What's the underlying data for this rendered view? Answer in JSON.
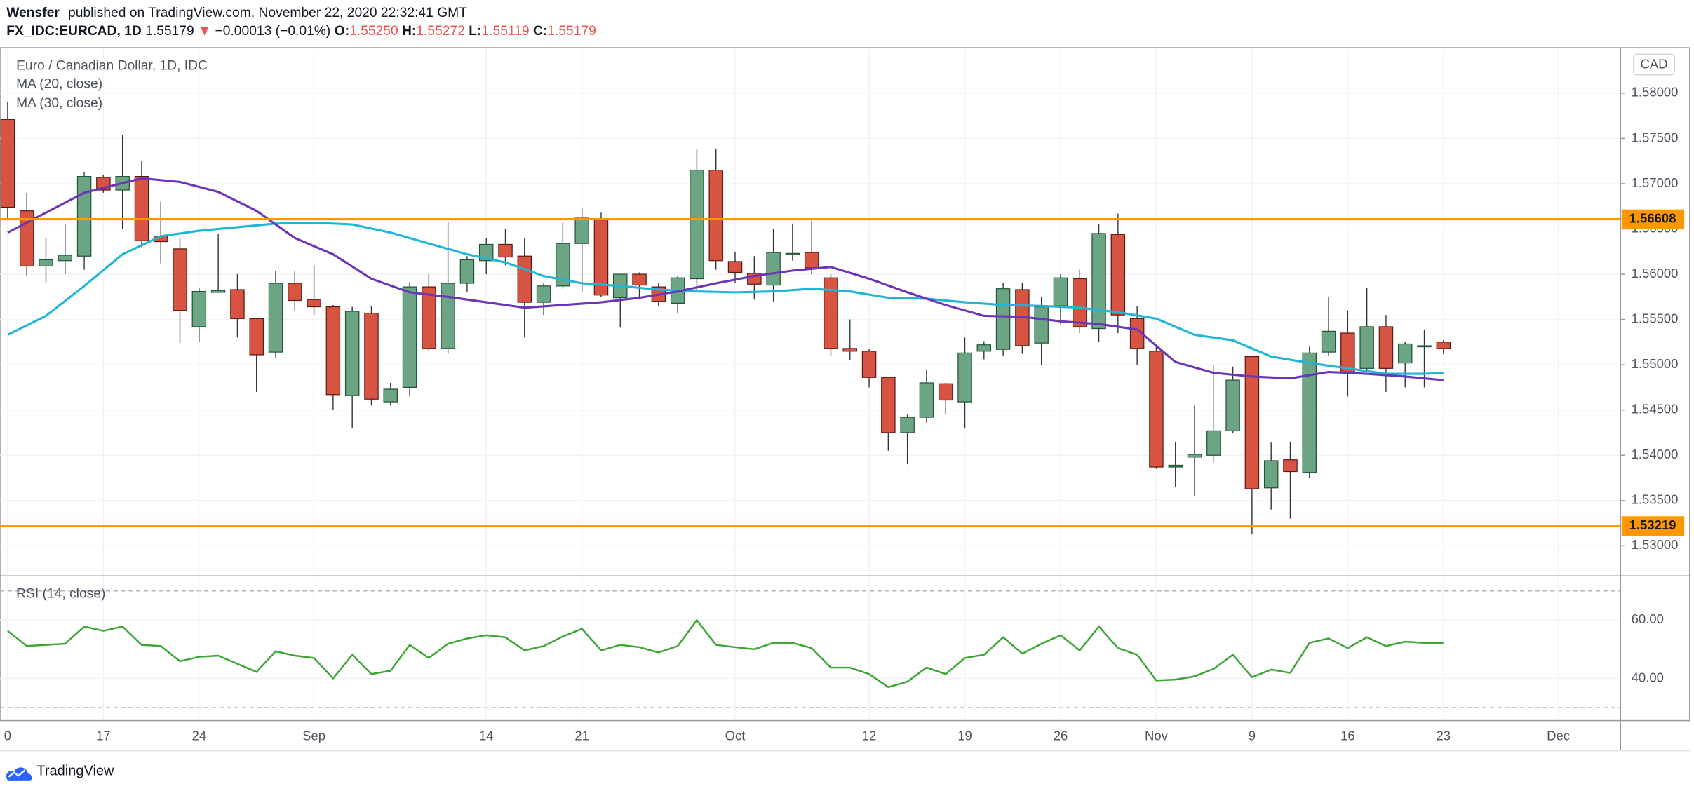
{
  "header": {
    "author": "Wensfer",
    "published": "published on TradingView.com, November 22, 2020 22:32:41 GMT",
    "symbol": "FX_IDC:EURCAD, 1D",
    "last": "1.55179",
    "arrow": "▼",
    "change": "−0.00013 (−0.01%)",
    "open_label": "O:",
    "open": "1.55250",
    "high_label": "H:",
    "high": "1.55272",
    "low_label": "L:",
    "low": "1.55119",
    "close_label": "C:",
    "close": "1.55179"
  },
  "footer": {
    "brand": "TradingView"
  },
  "chart_data": [
    {
      "type": "candlestick",
      "title": "Euro / Canadian Dollar, 1D, IDC",
      "axis_label": "CAD",
      "up_color": "#6ba583",
      "down_color": "#d75442",
      "x": [
        0,
        1,
        2,
        3,
        4,
        5,
        6,
        7,
        8,
        9,
        10,
        11,
        12,
        13,
        14,
        15,
        16,
        17,
        18,
        19,
        20,
        21,
        22,
        23,
        24,
        25,
        26,
        27,
        28,
        29,
        30,
        31,
        32,
        33,
        34,
        35,
        36,
        37,
        38,
        39,
        40,
        41,
        42,
        43,
        44,
        45,
        46,
        47,
        48,
        49,
        50,
        51,
        52,
        53,
        54,
        55,
        56,
        57,
        58,
        59,
        60,
        61,
        62,
        63,
        64,
        65,
        66,
        67,
        68,
        69,
        70,
        71,
        72,
        73,
        74,
        75
      ],
      "open": [
        1.5771,
        1.567,
        1.5609,
        1.5615,
        1.562,
        1.5707,
        1.5693,
        1.5708,
        1.5642,
        1.5628,
        1.5542,
        1.558,
        1.5583,
        1.5551,
        1.5514,
        1.559,
        1.5572,
        1.5564,
        1.5466,
        1.5557,
        1.5459,
        1.5475,
        1.5586,
        1.5518,
        1.559,
        1.5615,
        1.5633,
        1.562,
        1.5569,
        1.5587,
        1.5634,
        1.566,
        1.5574,
        1.56,
        1.5586,
        1.5568,
        1.5595,
        1.5715,
        1.5614,
        1.5601,
        1.5588,
        1.5622,
        1.5624,
        1.5596,
        1.5518,
        1.5515,
        1.5486,
        1.5425,
        1.5442,
        1.5479,
        1.5459,
        1.5515,
        1.5517,
        1.5583,
        1.5524,
        1.5565,
        1.5595,
        1.554,
        1.5644,
        1.5551,
        1.5515,
        1.5387,
        1.5398,
        1.54,
        1.5427,
        1.5509,
        1.5364,
        1.5395,
        1.5381,
        1.5514,
        1.5535,
        1.5496,
        1.5542,
        1.5502,
        1.552,
        1.5525
      ],
      "high": [
        1.579,
        1.569,
        1.564,
        1.5655,
        1.5713,
        1.571,
        1.5754,
        1.5725,
        1.568,
        1.564,
        1.5585,
        1.5645,
        1.56,
        1.5552,
        1.5604,
        1.5604,
        1.561,
        1.5566,
        1.5564,
        1.5565,
        1.548,
        1.559,
        1.56,
        1.5658,
        1.562,
        1.564,
        1.565,
        1.564,
        1.559,
        1.5657,
        1.5673,
        1.5668,
        1.56,
        1.5602,
        1.559,
        1.5598,
        1.5738,
        1.5738,
        1.5625,
        1.562,
        1.565,
        1.5656,
        1.5659,
        1.56,
        1.555,
        1.5518,
        1.5487,
        1.5445,
        1.5495,
        1.548,
        1.553,
        1.5526,
        1.559,
        1.559,
        1.5575,
        1.56,
        1.5605,
        1.5655,
        1.5667,
        1.5565,
        1.552,
        1.5415,
        1.5455,
        1.55,
        1.5498,
        1.551,
        1.5414,
        1.5415,
        1.552,
        1.5575,
        1.556,
        1.5585,
        1.5555,
        1.5525,
        1.5539,
        1.55272
      ],
      "low": [
        1.566,
        1.5598,
        1.559,
        1.56,
        1.5605,
        1.569,
        1.565,
        1.563,
        1.5612,
        1.5524,
        1.5525,
        1.558,
        1.553,
        1.547,
        1.5508,
        1.556,
        1.5555,
        1.545,
        1.543,
        1.5455,
        1.5455,
        1.5465,
        1.5515,
        1.5512,
        1.558,
        1.56,
        1.561,
        1.553,
        1.5555,
        1.5584,
        1.558,
        1.5575,
        1.5541,
        1.5572,
        1.5565,
        1.5557,
        1.5583,
        1.5605,
        1.559,
        1.5572,
        1.557,
        1.5615,
        1.56,
        1.551,
        1.5505,
        1.5475,
        1.5405,
        1.539,
        1.5436,
        1.5445,
        1.543,
        1.5506,
        1.551,
        1.5512,
        1.55,
        1.5545,
        1.5535,
        1.5525,
        1.5535,
        1.55,
        1.5385,
        1.5365,
        1.5355,
        1.5392,
        1.5425,
        1.5313,
        1.534,
        1.533,
        1.5375,
        1.551,
        1.5465,
        1.5493,
        1.547,
        1.5475,
        1.5475,
        1.55119
      ],
      "close": [
        1.5674,
        1.5609,
        1.5616,
        1.5621,
        1.5708,
        1.5693,
        1.5708,
        1.5637,
        1.5636,
        1.556,
        1.5581,
        1.5582,
        1.5551,
        1.5511,
        1.559,
        1.5571,
        1.5564,
        1.5467,
        1.5559,
        1.5462,
        1.5473,
        1.5586,
        1.5518,
        1.559,
        1.5616,
        1.5633,
        1.5619,
        1.5569,
        1.5587,
        1.5634,
        1.5662,
        1.5577,
        1.56,
        1.5588,
        1.557,
        1.5596,
        1.5715,
        1.5615,
        1.5602,
        1.5589,
        1.5624,
        1.5623,
        1.5607,
        1.5518,
        1.5515,
        1.5486,
        1.5425,
        1.5442,
        1.548,
        1.5461,
        1.5513,
        1.5522,
        1.5584,
        1.5521,
        1.5564,
        1.5596,
        1.5542,
        1.5645,
        1.5555,
        1.5518,
        1.5387,
        1.5389,
        1.5401,
        1.5427,
        1.5483,
        1.5363,
        1.5394,
        1.5382,
        1.5513,
        1.5537,
        1.5492,
        1.5542,
        1.5496,
        1.5523,
        1.5521,
        1.55179
      ],
      "series": [
        {
          "name": "MA (20, close)",
          "color": "#1fb5d6",
          "x": [
            0,
            2,
            4,
            6,
            8,
            10,
            12,
            14,
            16,
            18,
            20,
            22,
            24,
            26,
            28,
            30,
            32,
            34,
            36,
            38,
            40,
            42,
            44,
            46,
            48,
            50,
            52,
            54,
            56,
            58,
            60,
            62,
            64,
            66,
            68,
            70,
            72,
            74,
            75
          ],
          "values": [
            1.5533,
            1.5554,
            1.5587,
            1.5622,
            1.5642,
            1.5648,
            1.5652,
            1.5656,
            1.5657,
            1.5655,
            1.5646,
            1.5634,
            1.5622,
            1.5613,
            1.5598,
            1.559,
            1.5587,
            1.5583,
            1.5581,
            1.558,
            1.5581,
            1.5584,
            1.5581,
            1.5574,
            1.5573,
            1.5569,
            1.5566,
            1.5565,
            1.5563,
            1.5558,
            1.5551,
            1.5533,
            1.5527,
            1.5509,
            1.5502,
            1.5496,
            1.549,
            1.549,
            1.5491
          ]
        },
        {
          "name": "MA (30, close)",
          "color": "#6a35b8",
          "x": [
            0,
            4,
            7,
            9,
            11,
            13,
            15,
            17,
            19,
            21,
            23,
            25,
            27,
            29,
            31,
            33,
            35,
            37,
            39,
            41,
            43,
            45,
            47,
            49,
            51,
            53,
            55,
            57,
            59,
            61,
            63,
            65,
            67,
            69,
            71,
            73,
            75
          ],
          "values": [
            1.5646,
            1.569,
            1.5706,
            1.5702,
            1.5691,
            1.567,
            1.564,
            1.5622,
            1.5595,
            1.558,
            1.5575,
            1.5569,
            1.5563,
            1.5566,
            1.5569,
            1.5574,
            1.5581,
            1.559,
            1.5598,
            1.5604,
            1.5608,
            1.5595,
            1.558,
            1.5566,
            1.5554,
            1.5553,
            1.5548,
            1.5545,
            1.5539,
            1.5503,
            1.5491,
            1.5487,
            1.5485,
            1.5492,
            1.549,
            1.5487,
            1.5483
          ]
        }
      ],
      "levels": [
        {
          "value": 1.56608,
          "color": "#ff9800"
        },
        {
          "value": 1.53219,
          "color": "#ff9800"
        }
      ],
      "xlim": [
        -0.4,
        84.25
      ],
      "ylim": [
        1.5268,
        1.5849
      ],
      "yticks": [
        {
          "value": 1.53,
          "label": "1.53000"
        },
        {
          "value": 1.535,
          "label": "1.53500"
        },
        {
          "value": 1.54,
          "label": "1.54000"
        },
        {
          "value": 1.545,
          "label": "1.54500"
        },
        {
          "value": 1.55,
          "label": "1.55000"
        },
        {
          "value": 1.555,
          "label": "1.55500"
        },
        {
          "value": 1.56,
          "label": "1.56000"
        },
        {
          "value": 1.565,
          "label": "1.56500"
        },
        {
          "value": 1.57,
          "label": "1.57000"
        },
        {
          "value": 1.575,
          "label": "1.57500"
        },
        {
          "value": 1.58,
          "label": "1.58000"
        }
      ],
      "grid": true
    },
    {
      "type": "line",
      "title": "RSI (14, close)",
      "color": "#3ca535",
      "x": [
        0,
        1,
        2,
        3,
        4,
        5,
        6,
        7,
        8,
        9,
        10,
        11,
        12,
        13,
        14,
        15,
        16,
        17,
        18,
        19,
        20,
        21,
        22,
        23,
        24,
        25,
        26,
        27,
        28,
        29,
        30,
        31,
        32,
        33,
        34,
        35,
        36,
        37,
        38,
        39,
        40,
        41,
        42,
        43,
        44,
        45,
        46,
        47,
        48,
        49,
        50,
        51,
        52,
        53,
        54,
        55,
        56,
        57,
        58,
        59,
        60,
        61,
        62,
        63,
        64,
        65,
        66,
        67,
        68,
        69,
        70,
        71,
        72,
        73,
        74,
        75
      ],
      "values": [
        56.3,
        51.1,
        51.5,
        51.9,
        57.8,
        56.3,
        57.8,
        51.5,
        51.1,
        45.9,
        47.4,
        47.8,
        45.0,
        42.2,
        49.3,
        47.8,
        47.0,
        40.0,
        48.1,
        41.5,
        42.6,
        51.5,
        47.0,
        51.9,
        53.7,
        54.8,
        54.1,
        49.6,
        51.1,
        54.4,
        57.0,
        49.6,
        51.5,
        50.7,
        48.9,
        51.1,
        60.0,
        51.5,
        50.7,
        50.0,
        52.2,
        52.2,
        50.4,
        43.7,
        43.7,
        41.5,
        37.0,
        38.9,
        43.7,
        41.5,
        47.0,
        48.1,
        54.1,
        48.5,
        51.9,
        54.8,
        49.6,
        57.8,
        50.4,
        48.1,
        39.3,
        39.6,
        40.7,
        43.3,
        48.1,
        40.4,
        43.0,
        41.9,
        52.2,
        53.7,
        50.4,
        54.1,
        51.1,
        52.6,
        52.2,
        52.2
      ],
      "bands": [
        70,
        30
      ],
      "xlim": [
        -0.4,
        84.25
      ],
      "ylim": [
        25.9,
        74.8
      ],
      "yticks": [
        {
          "value": 40,
          "label": "40.00"
        },
        {
          "value": 60,
          "label": "60.00"
        }
      ],
      "xticks": [
        {
          "value": 0,
          "label": "0"
        },
        {
          "value": 5,
          "label": "17"
        },
        {
          "value": 10,
          "label": "24"
        },
        {
          "value": 16,
          "label": "Sep"
        },
        {
          "value": 25,
          "label": "14"
        },
        {
          "value": 30,
          "label": "21"
        },
        {
          "value": 38,
          "label": "Oct"
        },
        {
          "value": 45,
          "label": "12"
        },
        {
          "value": 50,
          "label": "19"
        },
        {
          "value": 55,
          "label": "26"
        },
        {
          "value": 60,
          "label": "Nov"
        },
        {
          "value": 65,
          "label": "9"
        },
        {
          "value": 70,
          "label": "16"
        },
        {
          "value": 75,
          "label": "23"
        },
        {
          "value": 81,
          "label": "Dec"
        }
      ],
      "grid": true
    }
  ]
}
